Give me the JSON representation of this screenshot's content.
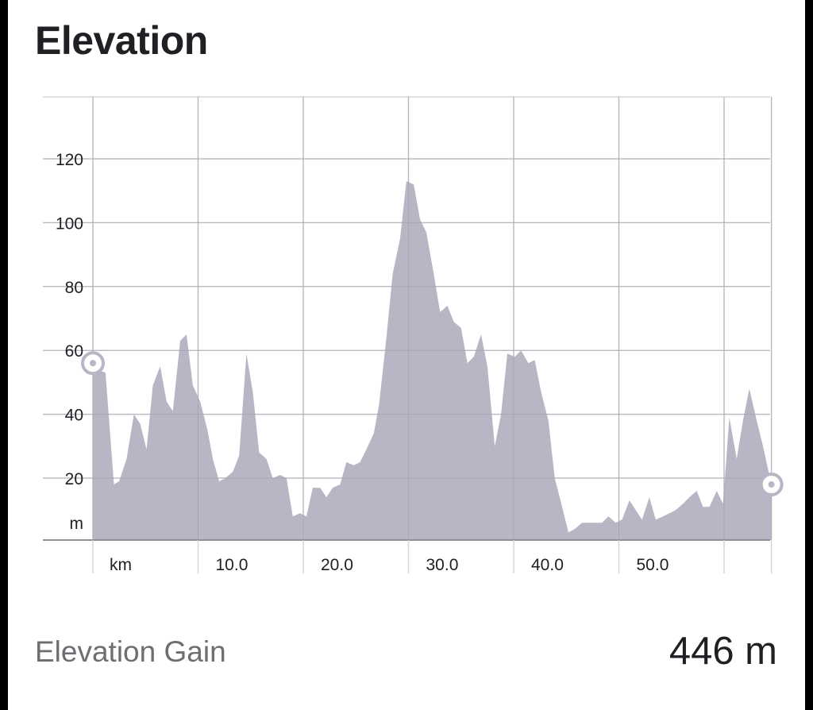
{
  "title": "Elevation",
  "stats": {
    "label": "Elevation Gain",
    "value": "446 m"
  },
  "colors": {
    "fill": "#b7b6c4",
    "grid": "#d6d6d6",
    "axis": "#8f8f92",
    "marker": "#b7b6c4",
    "text": "#1f1f24"
  },
  "chart_data": {
    "type": "area",
    "title": "Elevation",
    "xlabel": "km",
    "ylabel": "m",
    "xlim": [
      0,
      64.5
    ],
    "ylim": [
      0,
      138
    ],
    "y_ticks": [
      20,
      40,
      60,
      80,
      100,
      120
    ],
    "y_tick_labels": [
      "20",
      "40",
      "60",
      "80",
      "100",
      "120"
    ],
    "y_unit_label": "m",
    "x_ticks": [
      10,
      20,
      30,
      40,
      50
    ],
    "x_tick_labels": [
      "10.0",
      "20.0",
      "30.0",
      "40.0",
      "50.0"
    ],
    "x_unit_label": "km",
    "x_gridlines": [
      0,
      10,
      20,
      30,
      40,
      50,
      60,
      64.5
    ],
    "grid": true,
    "markers": [
      {
        "x": 0,
        "y": 56
      },
      {
        "x": 64.5,
        "y": 18
      }
    ],
    "series": [
      {
        "x": [
          0,
          0.4,
          1.2,
          2.0,
          2.5,
          3.2,
          3.9,
          4.5,
          5.1,
          5.7,
          6.4,
          7.0,
          7.6,
          8.3,
          8.9,
          9.5,
          10.2,
          10.9,
          11.4,
          12.0,
          12.6,
          13.3,
          13.9,
          14.6,
          15.2,
          15.8,
          16.5,
          17.1,
          17.8,
          18.4,
          19.0,
          19.7,
          20.3,
          20.9,
          21.6,
          22.2,
          22.8,
          23.5,
          24.1,
          24.8,
          25.4,
          26.0,
          26.7,
          27.2,
          27.9,
          28.5,
          29.2,
          29.8,
          30.5,
          31.1,
          31.7,
          32.4,
          33.0,
          33.7,
          34.3,
          35.0,
          35.6,
          36.2,
          36.9,
          37.5,
          38.2,
          38.8,
          39.4,
          40.1,
          40.7,
          41.4,
          42.0,
          42.6,
          43.3,
          43.9,
          44.6,
          45.2,
          45.8,
          46.5,
          47.1,
          47.8,
          48.4,
          49.0,
          49.7,
          50.3,
          51.0,
          51.6,
          52.2,
          52.9,
          53.5,
          54.2,
          54.8,
          55.4,
          56.1,
          56.7,
          57.4,
          58.0,
          58.6,
          59.3,
          59.9,
          60.5,
          61.2,
          61.8,
          62.4,
          63.1,
          63.7,
          64.5
        ],
        "values": [
          53,
          54,
          53,
          18,
          19,
          26,
          40,
          37,
          29,
          49,
          55,
          44,
          41,
          63,
          65,
          49,
          44,
          35,
          26,
          19,
          20,
          22,
          27,
          59,
          47,
          28,
          26,
          20,
          21,
          20,
          8,
          9,
          8,
          17,
          17,
          14,
          17,
          18,
          25,
          24,
          25,
          29,
          34,
          43,
          64,
          84,
          95,
          113,
          112,
          101,
          97,
          84,
          72,
          74,
          69,
          67,
          56,
          58,
          65,
          55,
          30,
          40,
          59,
          58,
          60,
          56,
          57,
          47,
          38,
          20,
          11,
          3,
          4,
          6,
          6,
          6,
          6,
          8,
          6,
          7,
          13,
          10,
          7,
          14,
          7,
          8,
          9,
          10,
          12,
          14,
          16,
          11,
          11,
          16,
          12,
          39,
          26,
          38,
          48,
          38,
          30,
          18
        ]
      }
    ]
  }
}
